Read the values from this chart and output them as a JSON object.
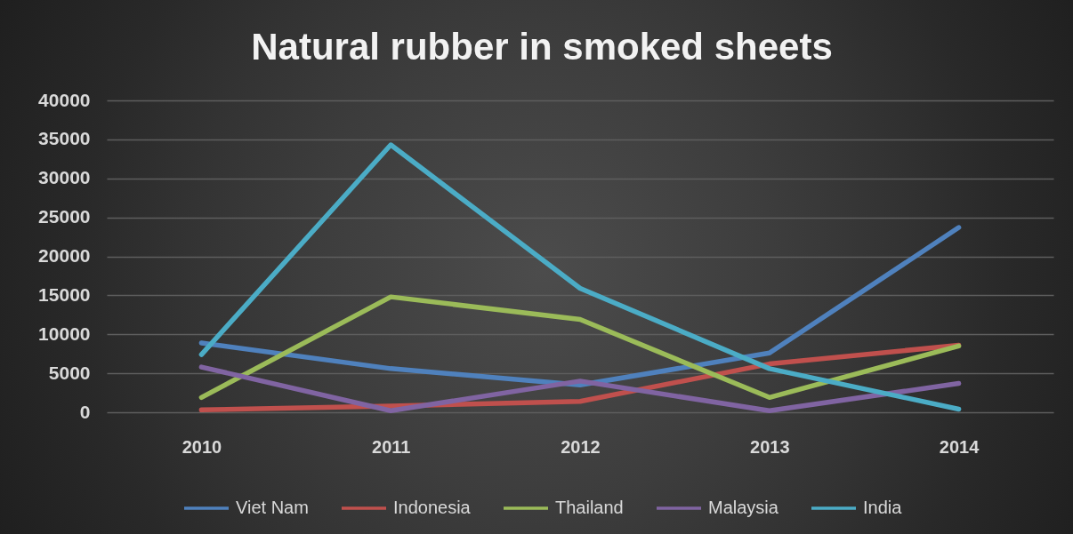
{
  "chart_data": {
    "type": "line",
    "title": "Natural rubber in smoked sheets",
    "categories": [
      "2010",
      "2011",
      "2012",
      "2013",
      "2014"
    ],
    "series": [
      {
        "name": "Viet Nam",
        "color": "#4f81bd",
        "values": [
          8900,
          5600,
          3500,
          7600,
          23700
        ]
      },
      {
        "name": "Indonesia",
        "color": "#c0504d",
        "values": [
          300,
          800,
          1400,
          6200,
          8600
        ]
      },
      {
        "name": "Thailand",
        "color": "#9bbb59",
        "values": [
          1900,
          14800,
          11900,
          1900,
          8500
        ]
      },
      {
        "name": "Malaysia",
        "color": "#8064a2",
        "values": [
          5800,
          200,
          4000,
          200,
          3700
        ]
      },
      {
        "name": "India",
        "color": "#4bacc6",
        "values": [
          7400,
          34300,
          15900,
          5600,
          400
        ]
      }
    ],
    "ylim": [
      0,
      40000
    ],
    "yticks": [
      0,
      5000,
      10000,
      15000,
      20000,
      25000,
      30000,
      35000,
      40000
    ],
    "grid": "y",
    "legend": "bottom",
    "line_style": "solid"
  }
}
